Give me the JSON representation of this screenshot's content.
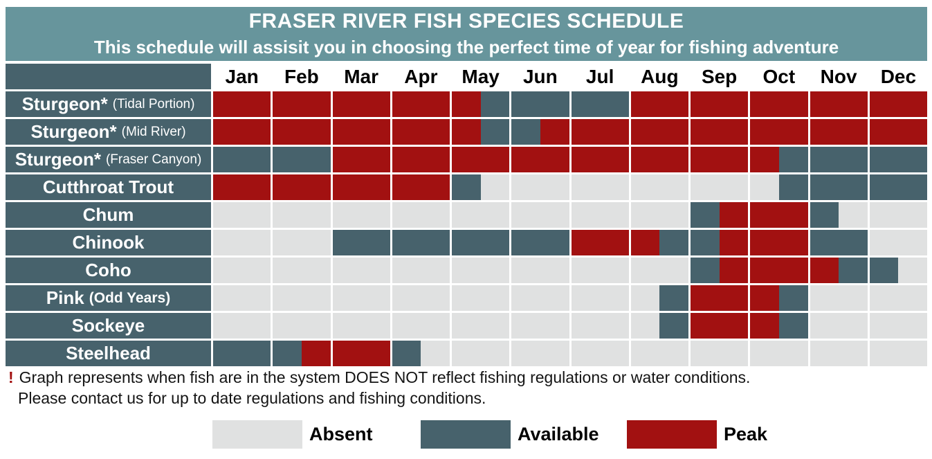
{
  "header": {
    "title": "FRASER RIVER FISH SPECIES SCHEDULE",
    "subtitle": "This schedule will assisit you in choosing the perfect time of year for fishing adventure"
  },
  "chart_data": {
    "type": "heatmap",
    "title": "FRASER RIVER FISH SPECIES SCHEDULE",
    "subtitle": "This schedule will assisit you in choosing the perfect time of year for fishing adventure",
    "x_categories": [
      "Jan",
      "Feb",
      "Mar",
      "Apr",
      "May",
      "Jun",
      "Jul",
      "Aug",
      "Sep",
      "Oct",
      "Nov",
      "Dec"
    ],
    "cell_resolution": "half-month (2 cells per month, 24 cells per row)",
    "state_codes": {
      "A": "Absent",
      "V": "Available",
      "P": "Peak"
    },
    "rows": [
      {
        "species": "Sturgeon*",
        "qualifier": "(Tidal Portion)",
        "qualifier_bold": false,
        "pattern": "PPPPPPPPPVVVVVPPPPPPPPPP"
      },
      {
        "species": "Sturgeon*",
        "qualifier": "(Mid River)",
        "qualifier_bold": false,
        "pattern": "PPPPPPPPPVVPPPPPPPPPPPPP"
      },
      {
        "species": "Sturgeon*",
        "qualifier": "(Fraser Canyon)",
        "qualifier_bold": false,
        "pattern": "VVVVPPPPPPPPPPPPPPPVVVVV"
      },
      {
        "species": "Cutthroat Trout",
        "qualifier": "",
        "qualifier_bold": false,
        "pattern": "PPPPPPPPVAAAAAAAAAAVVVVV"
      },
      {
        "species": "Chum",
        "qualifier": "",
        "qualifier_bold": false,
        "pattern": "AAAAAAAAAAAAAAAAVPPPVAAA"
      },
      {
        "species": "Chinook",
        "qualifier": "",
        "qualifier_bold": false,
        "pattern": "AAAAVVVVVVVVPPPVVPPPVVAA"
      },
      {
        "species": "Coho",
        "qualifier": "",
        "qualifier_bold": false,
        "pattern": "AAAAAAAAAAAAAAAAVPPPPVVA"
      },
      {
        "species": "Pink",
        "qualifier": "(Odd Years)",
        "qualifier_bold": true,
        "pattern": "AAAAAAAAAAAAAAAVPPPVAAAA"
      },
      {
        "species": "Sockeye",
        "qualifier": "",
        "qualifier_bold": false,
        "pattern": "AAAAAAAAAAAAAAAVPPPVAAAA"
      },
      {
        "species": "Steelhead",
        "qualifier": "",
        "qualifier_bold": false,
        "pattern": "VVVPPPVAAAAAAAAAAAAAAAAA"
      }
    ],
    "legend_position": "bottom"
  },
  "notes": {
    "bang": "!",
    "line1": "Graph represents when fish are in the system DOES NOT reflect fishing regulations or water conditions.",
    "line2": "Please contact us for up to date regulations and fishing conditions."
  },
  "legend": {
    "items": [
      {
        "code": "A",
        "label": "Absent"
      },
      {
        "code": "V",
        "label": "Available"
      },
      {
        "code": "P",
        "label": "Peak"
      }
    ]
  },
  "colors": {
    "header_bg": "#67959C",
    "available_slate": "#47626C",
    "peak_red": "#A21111",
    "absent_gray": "#E0E1E1",
    "note_accent": "#A21111"
  }
}
